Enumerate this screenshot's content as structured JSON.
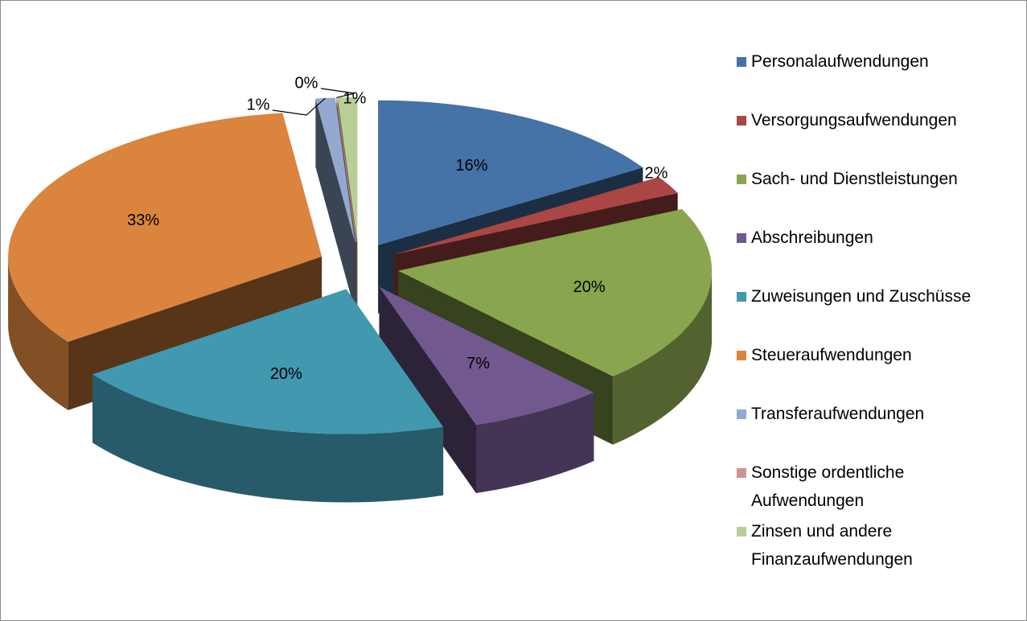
{
  "chart_data": {
    "type": "pie3d",
    "categories": [
      "Personalaufwendungen",
      "Versorgungsaufwendungen",
      "Sach- und Dienstleistungen",
      "Abschreibungen",
      "Zuweisungen und Zuschüsse",
      "Steueraufwendungen",
      "Transferaufwendungen",
      "Sonstige ordentliche Aufwendungen",
      "Zinsen und andere Finanzaufwendungen"
    ],
    "values": [
      16,
      2,
      20,
      7,
      20,
      33,
      1,
      0,
      1
    ],
    "value_labels": [
      "16%",
      "2%",
      "20%",
      "7%",
      "20%",
      "33%",
      "1%",
      "0%",
      "1%"
    ],
    "colors": [
      "#4572a7",
      "#aa4643",
      "#89a54e",
      "#71588f",
      "#4198af",
      "#db843d",
      "#93a9cf",
      "#d19392",
      "#b9cd96"
    ],
    "legend": "right"
  }
}
